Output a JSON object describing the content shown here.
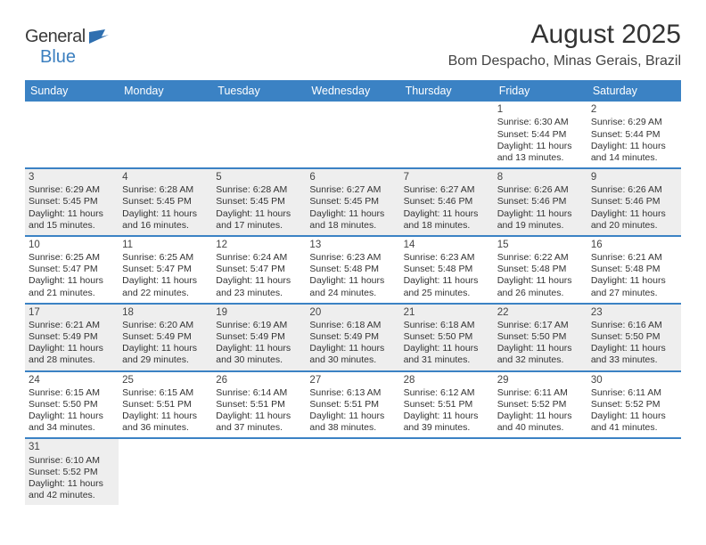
{
  "logo": {
    "text1": "General",
    "text2": "Blue"
  },
  "title": "August 2025",
  "location": "Bom Despacho, Minas Gerais, Brazil",
  "day_headers": [
    "Sunday",
    "Monday",
    "Tuesday",
    "Wednesday",
    "Thursday",
    "Friday",
    "Saturday"
  ],
  "header_bg": "#3b82c4",
  "header_fg": "#ffffff",
  "shade_bg": "#eeeeee",
  "divider_color": "#3b82c4",
  "weeks": [
    [
      null,
      null,
      null,
      null,
      null,
      {
        "n": "1",
        "sr": "6:30 AM",
        "ss": "5:44 PM",
        "dl": "11 hours and 13 minutes."
      },
      {
        "n": "2",
        "sr": "6:29 AM",
        "ss": "5:44 PM",
        "dl": "11 hours and 14 minutes."
      }
    ],
    [
      {
        "n": "3",
        "sr": "6:29 AM",
        "ss": "5:45 PM",
        "dl": "11 hours and 15 minutes."
      },
      {
        "n": "4",
        "sr": "6:28 AM",
        "ss": "5:45 PM",
        "dl": "11 hours and 16 minutes."
      },
      {
        "n": "5",
        "sr": "6:28 AM",
        "ss": "5:45 PM",
        "dl": "11 hours and 17 minutes."
      },
      {
        "n": "6",
        "sr": "6:27 AM",
        "ss": "5:45 PM",
        "dl": "11 hours and 18 minutes."
      },
      {
        "n": "7",
        "sr": "6:27 AM",
        "ss": "5:46 PM",
        "dl": "11 hours and 18 minutes."
      },
      {
        "n": "8",
        "sr": "6:26 AM",
        "ss": "5:46 PM",
        "dl": "11 hours and 19 minutes."
      },
      {
        "n": "9",
        "sr": "6:26 AM",
        "ss": "5:46 PM",
        "dl": "11 hours and 20 minutes."
      }
    ],
    [
      {
        "n": "10",
        "sr": "6:25 AM",
        "ss": "5:47 PM",
        "dl": "11 hours and 21 minutes."
      },
      {
        "n": "11",
        "sr": "6:25 AM",
        "ss": "5:47 PM",
        "dl": "11 hours and 22 minutes."
      },
      {
        "n": "12",
        "sr": "6:24 AM",
        "ss": "5:47 PM",
        "dl": "11 hours and 23 minutes."
      },
      {
        "n": "13",
        "sr": "6:23 AM",
        "ss": "5:48 PM",
        "dl": "11 hours and 24 minutes."
      },
      {
        "n": "14",
        "sr": "6:23 AM",
        "ss": "5:48 PM",
        "dl": "11 hours and 25 minutes."
      },
      {
        "n": "15",
        "sr": "6:22 AM",
        "ss": "5:48 PM",
        "dl": "11 hours and 26 minutes."
      },
      {
        "n": "16",
        "sr": "6:21 AM",
        "ss": "5:48 PM",
        "dl": "11 hours and 27 minutes."
      }
    ],
    [
      {
        "n": "17",
        "sr": "6:21 AM",
        "ss": "5:49 PM",
        "dl": "11 hours and 28 minutes."
      },
      {
        "n": "18",
        "sr": "6:20 AM",
        "ss": "5:49 PM",
        "dl": "11 hours and 29 minutes."
      },
      {
        "n": "19",
        "sr": "6:19 AM",
        "ss": "5:49 PM",
        "dl": "11 hours and 30 minutes."
      },
      {
        "n": "20",
        "sr": "6:18 AM",
        "ss": "5:49 PM",
        "dl": "11 hours and 30 minutes."
      },
      {
        "n": "21",
        "sr": "6:18 AM",
        "ss": "5:50 PM",
        "dl": "11 hours and 31 minutes."
      },
      {
        "n": "22",
        "sr": "6:17 AM",
        "ss": "5:50 PM",
        "dl": "11 hours and 32 minutes."
      },
      {
        "n": "23",
        "sr": "6:16 AM",
        "ss": "5:50 PM",
        "dl": "11 hours and 33 minutes."
      }
    ],
    [
      {
        "n": "24",
        "sr": "6:15 AM",
        "ss": "5:50 PM",
        "dl": "11 hours and 34 minutes."
      },
      {
        "n": "25",
        "sr": "6:15 AM",
        "ss": "5:51 PM",
        "dl": "11 hours and 36 minutes."
      },
      {
        "n": "26",
        "sr": "6:14 AM",
        "ss": "5:51 PM",
        "dl": "11 hours and 37 minutes."
      },
      {
        "n": "27",
        "sr": "6:13 AM",
        "ss": "5:51 PM",
        "dl": "11 hours and 38 minutes."
      },
      {
        "n": "28",
        "sr": "6:12 AM",
        "ss": "5:51 PM",
        "dl": "11 hours and 39 minutes."
      },
      {
        "n": "29",
        "sr": "6:11 AM",
        "ss": "5:52 PM",
        "dl": "11 hours and 40 minutes."
      },
      {
        "n": "30",
        "sr": "6:11 AM",
        "ss": "5:52 PM",
        "dl": "11 hours and 41 minutes."
      }
    ],
    [
      {
        "n": "31",
        "sr": "6:10 AM",
        "ss": "5:52 PM",
        "dl": "11 hours and 42 minutes."
      },
      null,
      null,
      null,
      null,
      null,
      null
    ]
  ],
  "labels": {
    "sunrise": "Sunrise:",
    "sunset": "Sunset:",
    "daylight": "Daylight:"
  }
}
